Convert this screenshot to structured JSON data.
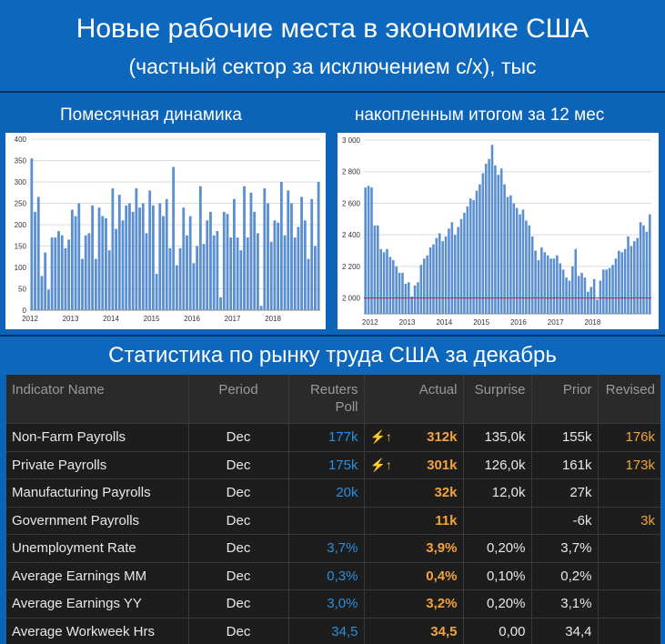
{
  "header": {
    "title": "Новые рабочие места в экономике США",
    "subtitle": "(частный сектор за исключением с/х), тыс"
  },
  "left_chart_label": "Помесячная динамика",
  "right_chart_label": "накопленным итогом за 12 мес",
  "section_title": "Статистика по рынку труда США за декабрь",
  "chart_data": [
    {
      "type": "bar",
      "title": "Помесячная динамика",
      "ylim": [
        0,
        400
      ],
      "yticks": [
        0,
        50,
        100,
        150,
        200,
        250,
        300,
        350,
        400
      ],
      "xtick_labels": [
        "2012",
        "2013",
        "2014",
        "2015",
        "2016",
        "2017",
        "2018"
      ],
      "grid": true,
      "color": "#5b8fd0",
      "values": [
        355,
        230,
        265,
        80,
        135,
        48,
        170,
        170,
        185,
        175,
        145,
        165,
        235,
        220,
        250,
        120,
        175,
        180,
        245,
        120,
        240,
        220,
        215,
        140,
        285,
        190,
        270,
        210,
        245,
        250,
        230,
        285,
        240,
        250,
        180,
        280,
        245,
        85,
        250,
        220,
        260,
        145,
        335,
        105,
        145,
        240,
        175,
        220,
        110,
        150,
        290,
        155,
        210,
        230,
        175,
        185,
        30,
        230,
        225,
        170,
        260,
        170,
        140,
        290,
        170,
        275,
        230,
        180,
        10,
        285,
        250,
        160,
        210,
        205,
        300,
        175,
        280,
        250,
        170,
        195,
        265,
        210,
        120,
        260,
        150,
        300
      ]
    },
    {
      "type": "bar",
      "title": "накопленным итогом за 12 мес",
      "ylim": [
        1900,
        3000
      ],
      "yticks": [
        2000,
        2200,
        2400,
        2600,
        2800,
        3000
      ],
      "ytick_labels": [
        "2 000",
        "2 200",
        "2 400",
        "2 600",
        "2 800",
        "3 000"
      ],
      "xtick_labels": [
        "2012",
        "2013",
        "2014",
        "2015",
        "2016",
        "2017",
        "2018"
      ],
      "grid": true,
      "reference_line": 2000,
      "color": "#5b8fd0",
      "values": [
        2700,
        2710,
        2700,
        2460,
        2460,
        2310,
        2290,
        2310,
        2260,
        2240,
        2200,
        2160,
        2160,
        2090,
        2100,
        2010,
        2080,
        2100,
        2210,
        2250,
        2270,
        2320,
        2340,
        2380,
        2410,
        2360,
        2390,
        2440,
        2480,
        2400,
        2450,
        2500,
        2540,
        2580,
        2630,
        2620,
        2680,
        2720,
        2790,
        2850,
        2880,
        2970,
        2840,
        2780,
        2820,
        2720,
        2640,
        2650,
        2600,
        2570,
        2530,
        2560,
        2490,
        2460,
        2390,
        2300,
        2240,
        2320,
        2290,
        2270,
        2250,
        2250,
        2270,
        2220,
        2180,
        2130,
        2110,
        2200,
        2310,
        2140,
        2160,
        2130,
        2040,
        2070,
        2120,
        1990,
        2110,
        2180,
        2180,
        2190,
        2210,
        2250,
        2300,
        2290,
        2310,
        2390,
        2330,
        2360,
        2380,
        2480,
        2460,
        2420,
        2530
      ]
    }
  ],
  "table": {
    "headers": {
      "indicator": "Indicator Name",
      "period": "Period",
      "poll_line1": "Reuters",
      "poll_line2": "Poll",
      "actual": "Actual",
      "surprise": "Surprise",
      "prior": "Prior",
      "revised": "Revised"
    },
    "rows": [
      {
        "name": "Non-Farm Payrolls",
        "period": "Dec",
        "poll": "177k",
        "icon": "⚡↑",
        "actual": "312k",
        "surprise": "135,0k",
        "prior": "155k",
        "revised": "176k"
      },
      {
        "name": "Private Payrolls",
        "period": "Dec",
        "poll": "175k",
        "icon": "⚡↑",
        "actual": "301k",
        "surprise": "126,0k",
        "prior": "161k",
        "revised": "173k"
      },
      {
        "name": "Manufacturing Payrolls",
        "period": "Dec",
        "poll": "20k",
        "icon": "",
        "actual": "32k",
        "surprise": "12,0k",
        "prior": "27k",
        "revised": ""
      },
      {
        "name": "Government Payrolls",
        "period": "Dec",
        "poll": "",
        "icon": "",
        "actual": "11k",
        "surprise": "",
        "prior": "-6k",
        "revised": "3k"
      },
      {
        "name": "Unemployment Rate",
        "period": "Dec",
        "poll": "3,7%",
        "icon": "",
        "actual": "3,9%",
        "surprise": "0,20%",
        "prior": "3,7%",
        "revised": ""
      },
      {
        "name": "Average Earnings MM",
        "period": "Dec",
        "poll": "0,3%",
        "icon": "",
        "actual": "0,4%",
        "surprise": "0,10%",
        "prior": "0,2%",
        "revised": ""
      },
      {
        "name": "Average Earnings YY",
        "period": "Dec",
        "poll": "3,0%",
        "icon": "",
        "actual": "3,2%",
        "surprise": "0,20%",
        "prior": "3,1%",
        "revised": ""
      },
      {
        "name": "Average Workweek Hrs",
        "period": "Dec",
        "poll": "34,5",
        "icon": "",
        "actual": "34,5",
        "surprise": "0,00",
        "prior": "34,4",
        "revised": ""
      }
    ]
  }
}
